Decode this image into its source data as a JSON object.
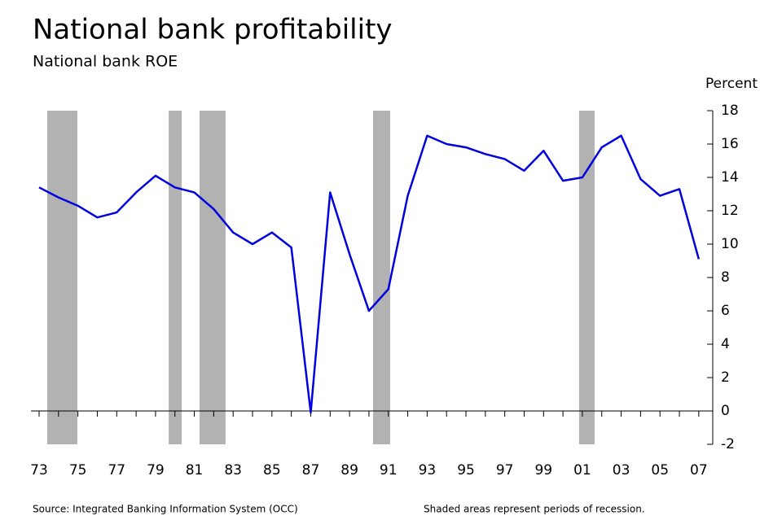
{
  "chart_data": {
    "type": "line",
    "title": "National bank profitability",
    "subtitle": "National bank ROE",
    "y_axis_label": "Percent",
    "source": "Source: Integrated Banking Information System (OCC)",
    "note": "Shaded areas represent periods of recession.",
    "x": [
      1973,
      1974,
      1975,
      1976,
      1977,
      1978,
      1979,
      1980,
      1981,
      1982,
      1983,
      1984,
      1985,
      1986,
      1987,
      1988,
      1989,
      1990,
      1991,
      1992,
      1993,
      1994,
      1995,
      1996,
      1997,
      1998,
      1999,
      2000,
      2001,
      2002,
      2003,
      2004,
      2005,
      2006,
      2007
    ],
    "series": [
      {
        "name": "National bank ROE",
        "color": "#0000e0",
        "values": [
          13.4,
          12.8,
          12.3,
          11.6,
          11.9,
          13.1,
          14.1,
          13.4,
          13.1,
          12.1,
          10.7,
          10.0,
          10.7,
          9.8,
          -0.1,
          13.1,
          9.4,
          6.0,
          7.3,
          12.9,
          16.5,
          16.0,
          15.8,
          15.4,
          15.1,
          14.4,
          15.6,
          13.8,
          14.0,
          15.8,
          16.5,
          13.9,
          12.9,
          13.3,
          9.1
        ]
      }
    ],
    "recessions": [
      [
        1973.42,
        1974.97
      ],
      [
        1979.68,
        1980.35
      ],
      [
        1981.27,
        1982.61
      ],
      [
        1990.21,
        1991.09
      ],
      [
        2000.83,
        2001.63
      ]
    ],
    "recession_color": "#b2b2b2",
    "xlim": [
      1972.58,
      2007.72
    ],
    "xticks": [
      {
        "value": 1973,
        "label": "73"
      },
      {
        "value": 1975,
        "label": "75"
      },
      {
        "value": 1977,
        "label": "77"
      },
      {
        "value": 1979,
        "label": "79"
      },
      {
        "value": 1981,
        "label": "81"
      },
      {
        "value": 1983,
        "label": "83"
      },
      {
        "value": 1985,
        "label": "85"
      },
      {
        "value": 1987,
        "label": "87"
      },
      {
        "value": 1989,
        "label": "89"
      },
      {
        "value": 1991,
        "label": "91"
      },
      {
        "value": 1993,
        "label": "93"
      },
      {
        "value": 1995,
        "label": "95"
      },
      {
        "value": 1997,
        "label": "97"
      },
      {
        "value": 1999,
        "label": "99"
      },
      {
        "value": 2001,
        "label": "01"
      },
      {
        "value": 2003,
        "label": "03"
      },
      {
        "value": 2005,
        "label": "05"
      },
      {
        "value": 2007,
        "label": "07"
      }
    ],
    "xminor_ticks": [
      1973,
      1974,
      1975,
      1976,
      1977,
      1978,
      1979,
      1980,
      1981,
      1982,
      1983,
      1984,
      1985,
      1986,
      1987,
      1988,
      1989,
      1990,
      1991,
      1992,
      1993,
      1994,
      1995,
      1996,
      1997,
      1998,
      1999,
      2000,
      2001,
      2002,
      2003,
      2004,
      2005,
      2006,
      2007
    ],
    "ylim": [
      -2,
      18
    ],
    "yticks": [
      -2,
      0,
      2,
      4,
      6,
      8,
      10,
      12,
      14,
      16,
      18
    ]
  }
}
